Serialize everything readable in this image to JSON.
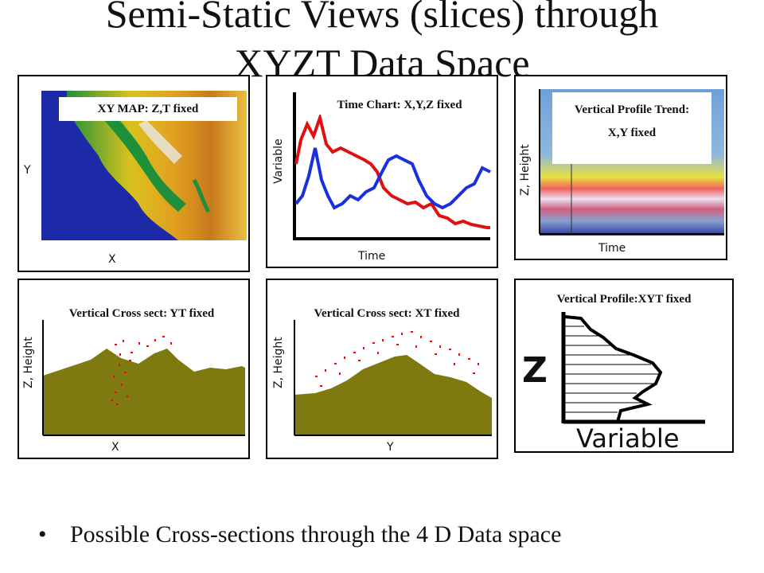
{
  "title": {
    "line1": "Semi-Static Views (slices) through",
    "line2": "XYZT Data Space"
  },
  "panels": {
    "xy_map": {
      "label": "XY MAP:  Z,T fixed",
      "y_axis": "Y",
      "x_axis": "X"
    },
    "time_chart": {
      "label": "Time Chart: X,Y,Z fixed",
      "y_axis": "Variable",
      "x_axis": "Time"
    },
    "vertical_profile_trend": {
      "label_line1": "Vertical Profile Trend:",
      "label_line2": "X,Y fixed",
      "y_axis": "Z, Height",
      "x_axis": "Time"
    },
    "cross_yt": {
      "label": "Vertical Cross sect:  YT fixed",
      "y_axis": "Z, Height",
      "x_axis": "X"
    },
    "cross_xt": {
      "label": "Vertical Cross sect:  XT fixed",
      "y_axis": "Z, Height",
      "x_axis": "Y"
    },
    "vertical_profile": {
      "label": "Vertical Profile:XYT fixed",
      "y_axis": "Z",
      "x_axis": "Variable"
    }
  },
  "bullet": {
    "symbol": "•",
    "text": "Possible  Cross-sections through the 4 D Data space"
  },
  "colors": {
    "terrain": "#7f7a10",
    "red_series": "#e01010",
    "blue_series": "#1a2fe0",
    "map_water": "#1c2aa8",
    "map_green": "#1f8f3a"
  }
}
